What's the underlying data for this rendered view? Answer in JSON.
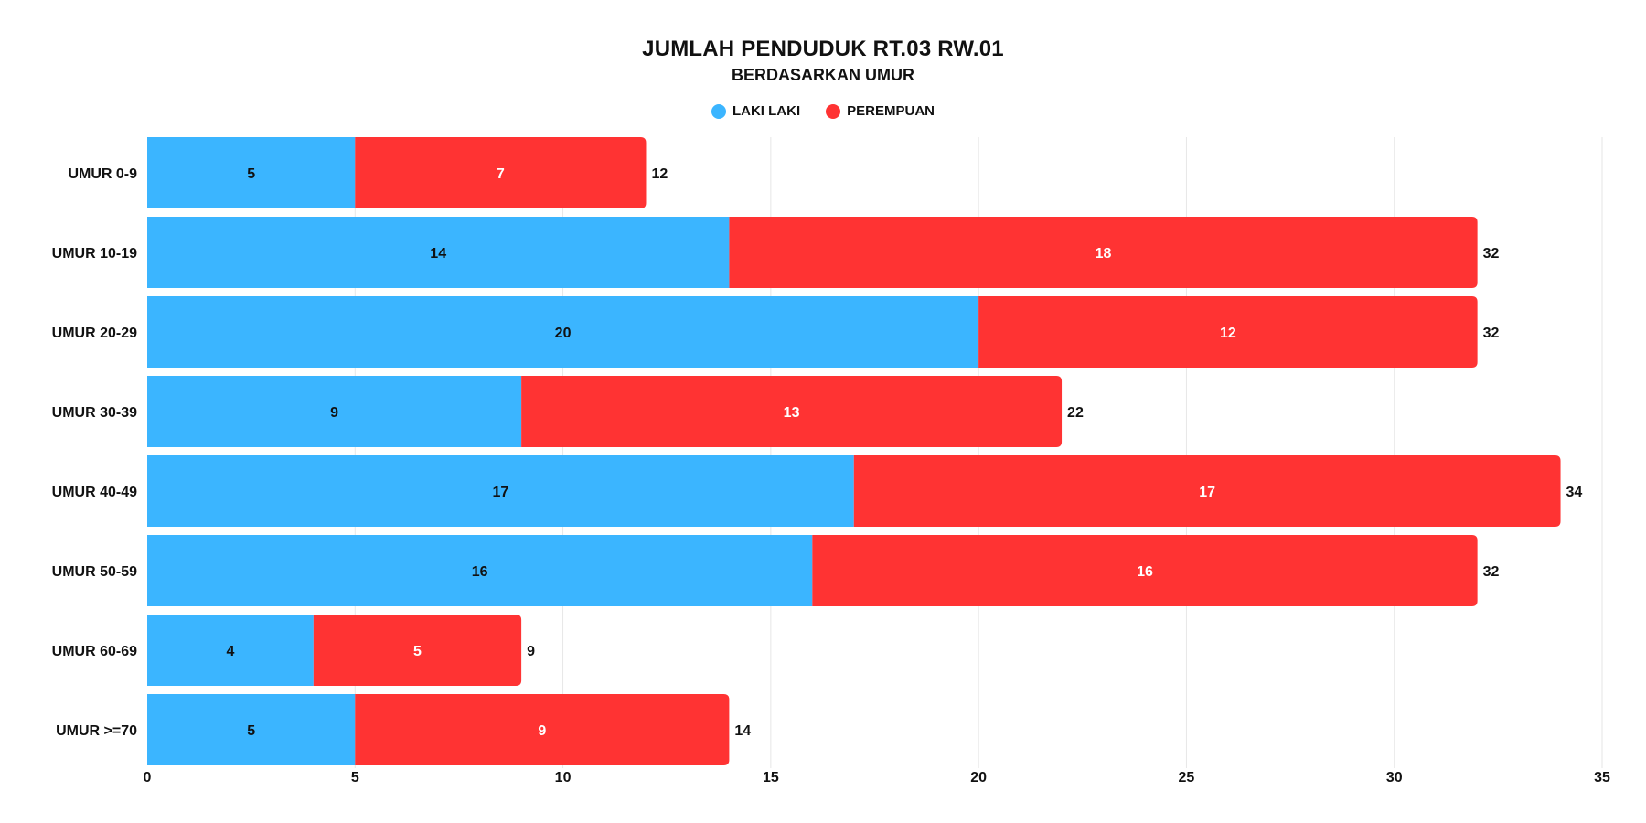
{
  "chart_data": {
    "type": "bar",
    "orientation": "horizontal",
    "stacked": true,
    "title": "JUMLAH PENDUDUK RT.03 RW.01",
    "subtitle": "BERDASARKAN UMUR",
    "categories": [
      "UMUR 0-9",
      "UMUR 10-19",
      "UMUR 20-29",
      "UMUR 30-39",
      "UMUR 40-49",
      "UMUR 50-59",
      "UMUR 60-69",
      "UMUR >=70"
    ],
    "series": [
      {
        "name": "LAKI LAKI",
        "color": "#3BB5FF",
        "label_color": "#111111",
        "values": [
          5,
          14,
          20,
          9,
          17,
          16,
          4,
          5
        ]
      },
      {
        "name": "PEREMPUAN",
        "color": "#FF3333",
        "label_color": "#ffffff",
        "values": [
          7,
          18,
          12,
          13,
          17,
          16,
          5,
          9
        ]
      }
    ],
    "totals": [
      12,
      32,
      32,
      22,
      34,
      32,
      9,
      14
    ],
    "xlim": [
      0,
      35
    ],
    "xticks": [
      0,
      5,
      10,
      15,
      20,
      25,
      30,
      35
    ],
    "grid": true,
    "legend_position": "top-center"
  }
}
